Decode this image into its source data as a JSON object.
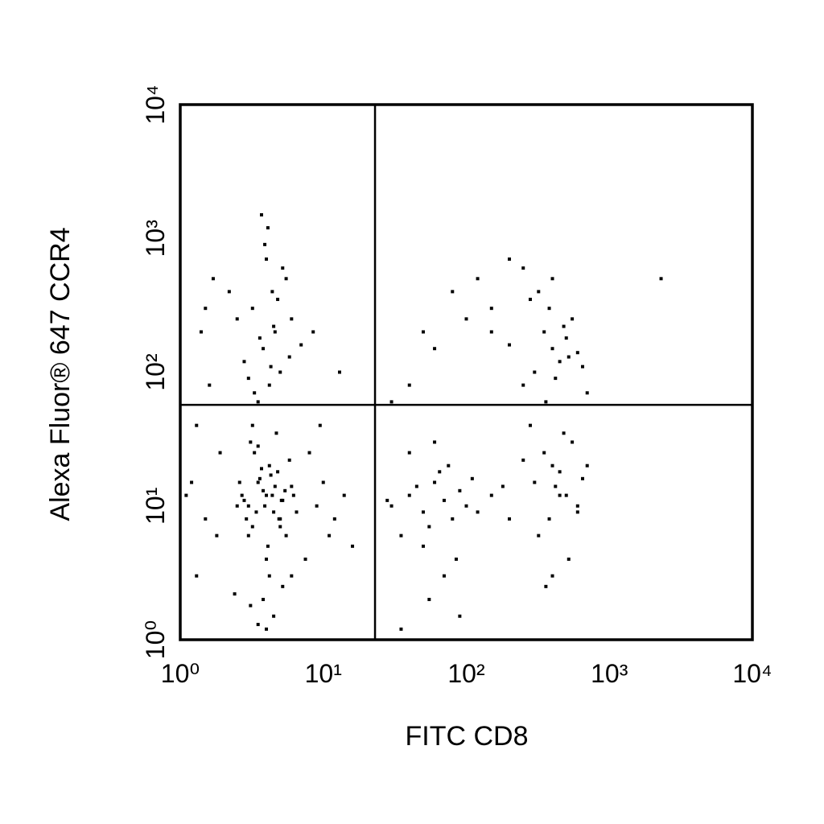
{
  "chart_data": {
    "type": "scatter",
    "xlabel": "FITC CD8",
    "ylabel": "Alexa Fluor® 647 CCR4",
    "xscale": "log",
    "yscale": "log",
    "xlim": [
      1,
      10000
    ],
    "ylim": [
      1,
      10000
    ],
    "xticks": [
      {
        "value": 1,
        "label": "10⁰"
      },
      {
        "value": 10,
        "label": "10¹"
      },
      {
        "value": 100,
        "label": "10²"
      },
      {
        "value": 1000,
        "label": "10³"
      },
      {
        "value": 10000,
        "label": "10⁴"
      }
    ],
    "yticks": [
      {
        "value": 1,
        "label": "10⁰"
      },
      {
        "value": 10,
        "label": "10¹"
      },
      {
        "value": 100,
        "label": "10²"
      },
      {
        "value": 1000,
        "label": "10³"
      },
      {
        "value": 10000,
        "label": "10⁴"
      }
    ],
    "quadrant": {
      "x": 23,
      "y": 57
    },
    "series": [
      {
        "color": "#000000",
        "x": [
          3,
          4,
          5,
          3.5,
          4.5,
          2.8,
          6,
          3.2,
          4.2,
          5.5,
          3.8,
          4.8,
          2.5,
          6.5,
          3.3,
          4.1,
          5.2,
          3.6,
          4.4,
          2.9,
          5.8,
          3.1,
          4.6,
          3.9,
          5,
          2.7,
          4.3,
          3.4,
          5.4,
          4,
          3,
          4.7,
          3.7,
          5.1,
          2.6,
          4.9,
          3.5,
          6.2,
          4.2,
          3.2,
          3.5,
          4.2,
          5,
          3.8,
          4.6,
          2.8,
          6,
          3.2,
          4.4,
          5.5,
          3,
          4,
          4.8,
          3.6,
          5.2,
          2.5,
          4.1,
          3.3,
          5.8,
          4.5,
          3.9,
          2.2,
          7,
          4.3,
          3.7,
          3.8,
          4.5,
          5.2,
          3.1,
          4,
          6,
          2.4,
          7.5,
          3.5,
          1.5,
          1.2,
          1.5,
          1.3,
          1.8,
          1.4,
          1.1,
          1.6,
          1.9,
          1.3,
          1.7,
          9,
          10,
          12,
          8,
          14,
          11,
          9.5,
          13,
          8.5,
          16,
          30,
          40,
          50,
          60,
          70,
          80,
          100,
          45,
          55,
          65,
          35,
          90,
          120,
          150,
          75,
          50,
          40,
          60,
          85,
          110,
          28,
          200,
          180,
          70,
          55,
          300,
          400,
          500,
          350,
          450,
          600,
          250,
          550,
          380,
          420,
          480,
          320,
          650,
          280,
          520,
          400,
          360,
          600,
          700,
          450,
          300,
          400,
          350,
          450,
          500,
          250,
          550,
          380,
          420,
          600,
          320,
          480,
          200,
          650,
          700,
          280,
          520,
          400,
          360,
          150,
          30,
          50,
          80,
          120,
          200,
          40,
          60,
          100,
          150,
          250,
          35,
          90,
          2300
        ],
        "y": [
          10,
          12,
          8,
          15,
          9,
          11,
          14,
          7,
          20,
          6,
          13,
          18,
          10,
          9,
          25,
          5,
          11,
          16,
          12,
          8,
          22,
          30,
          14,
          10,
          7,
          12,
          17,
          9,
          13,
          4,
          6,
          35,
          19,
          11,
          15,
          8,
          28,
          12,
          3,
          40,
          60,
          80,
          100,
          150,
          200,
          120,
          250,
          300,
          400,
          500,
          90,
          700,
          350,
          180,
          600,
          250,
          1200,
          70,
          130,
          220,
          900,
          400,
          160,
          110,
          1500,
          2,
          1.5,
          2.5,
          1.8,
          1.2,
          3,
          2.2,
          4,
          1.3,
          8,
          15,
          300,
          40,
          6,
          200,
          12,
          80,
          25,
          3,
          500,
          10,
          15,
          8,
          25,
          12,
          6,
          40,
          100,
          200,
          5,
          10,
          12,
          9,
          15,
          11,
          8,
          10,
          14,
          7,
          18,
          6,
          13,
          9,
          12,
          20,
          5,
          25,
          30,
          4,
          16,
          11,
          8,
          14,
          3,
          2,
          15,
          20,
          12,
          25,
          18,
          10,
          22,
          30,
          8,
          14,
          35,
          6,
          16,
          40,
          4,
          3,
          2.5,
          9,
          20,
          12,
          100,
          150,
          200,
          120,
          180,
          80,
          250,
          300,
          90,
          140,
          400,
          220,
          160,
          110,
          70,
          350,
          130,
          500,
          60,
          200,
          60,
          200,
          400,
          500,
          700,
          80,
          150,
          250,
          300,
          600,
          1.2,
          1.5,
          500
        ]
      }
    ]
  }
}
